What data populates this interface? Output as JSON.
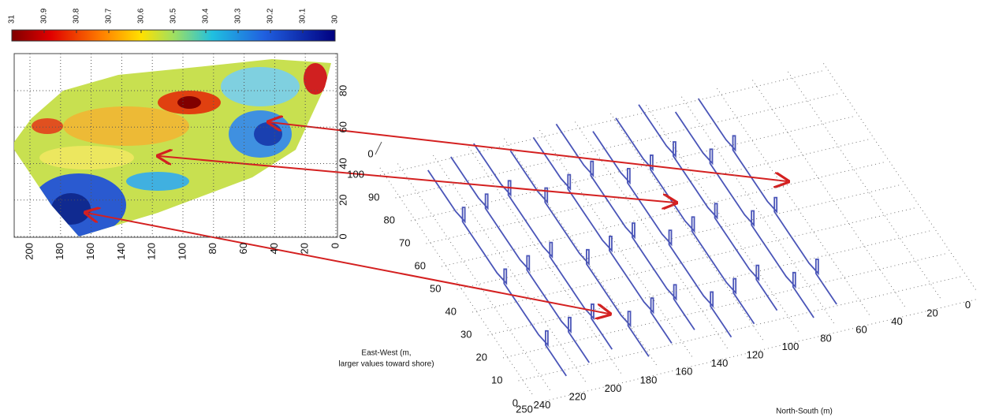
{
  "colorbar": {
    "lim": [
      31,
      30
    ],
    "ticks": [
      31,
      30.9,
      30.8,
      30.7,
      30.6,
      30.5,
      30.4,
      30.3,
      30.2,
      30.1,
      30
    ]
  },
  "map": {
    "xlim": [
      0,
      200
    ],
    "ylim": [
      0,
      80
    ],
    "xticks": [
      200,
      180,
      160,
      140,
      120,
      100,
      80,
      60,
      40,
      20,
      0
    ],
    "yticks": [
      0,
      20,
      40,
      60,
      80
    ]
  },
  "plot3d": {
    "vertical_ticks": [
      0
    ],
    "ew_ticks": [
      0,
      10,
      20,
      30,
      40,
      50,
      60,
      70,
      80,
      90,
      100
    ],
    "ns_ticks": [
      250,
      240,
      220,
      200,
      180,
      160,
      140,
      120,
      100,
      80,
      60,
      40,
      20,
      0
    ],
    "ew_label": [
      "East-West (m,",
      "larger values toward shore)"
    ],
    "ns_label": "North-South (m)"
  }
}
